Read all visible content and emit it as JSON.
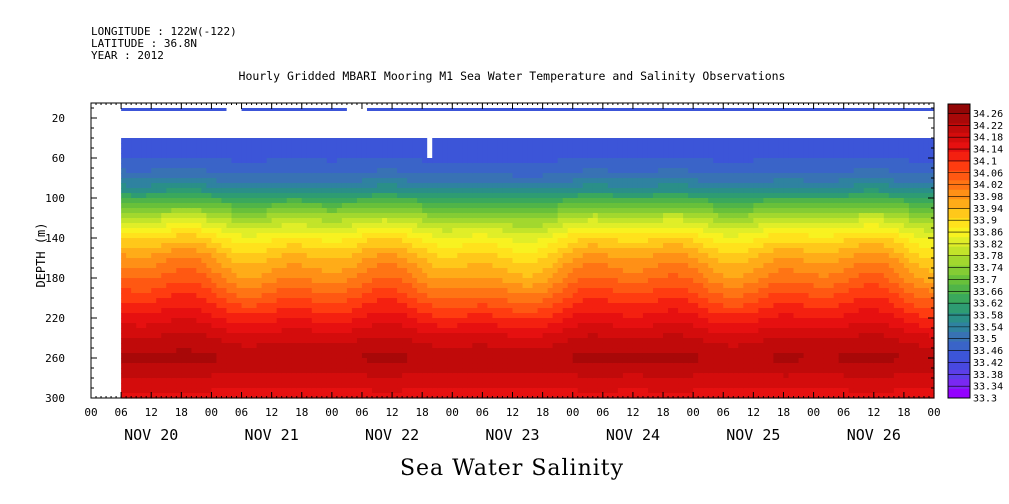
{
  "header": {
    "longitude": "LONGITUDE : 122W(-122)",
    "latitude": "LATITUDE : 36.8N",
    "year": "YEAR : 2012"
  },
  "chart_data": {
    "type": "heatmap",
    "title": "Hourly Gridded MBARI Mooring M1 Sea Water Temperature and Salinity Observations",
    "xlabel": "Sea Water Salinity",
    "ylabel": "DEPTH (m)",
    "x_start": "2012-11-20 00:00",
    "x_end": "2012-11-27 00:00",
    "data_start": "2012-11-20 06:00",
    "hour_tick_labels": [
      "00",
      "06",
      "12",
      "18"
    ],
    "day_labels": [
      "NOV 20",
      "NOV 21",
      "NOV 22",
      "NOV 23",
      "NOV 24",
      "NOV 25",
      "NOV 26"
    ],
    "y_ticks": [
      20,
      60,
      100,
      140,
      180,
      220,
      260,
      300
    ],
    "ylim": [
      300,
      5
    ],
    "top_layer_depths": [
      10,
      13
    ],
    "main_layer_top_depth": 40,
    "top_layer_gaps": [
      [
        "2012-11-21 03:00",
        "2012-11-21 06:00"
      ],
      [
        "2012-11-22 03:00",
        "2012-11-22 07:00"
      ]
    ],
    "main_layer_gaps": [
      [
        "2012-11-22 19:00",
        "2012-11-22 20:00"
      ]
    ],
    "main_layer_gap_depths": [
      40,
      60
    ],
    "colorbar": {
      "min": 33.3,
      "max": 34.26,
      "step": 0.04,
      "labels": [
        "34.26",
        "34.22",
        "34.18",
        "34.14",
        "34.1",
        "34.06",
        "34.02",
        "33.98",
        "33.94",
        "33.9",
        "33.86",
        "33.82",
        "33.78",
        "33.74",
        "33.7",
        "33.66",
        "33.62",
        "33.58",
        "33.54",
        "33.5",
        "33.46",
        "33.42",
        "33.38",
        "33.34",
        "33.3"
      ],
      "colors": [
        "#9400ff",
        "#7a28f2",
        "#5c3ee8",
        "#4848e0",
        "#3c55d8",
        "#3a64c8",
        "#3872b4",
        "#2f82a0",
        "#2a8f88",
        "#2e9c72",
        "#3aa85c",
        "#50b448",
        "#68c03a",
        "#84cc34",
        "#a2d82e",
        "#c2e42a",
        "#e0ee28",
        "#f8f220",
        "#ffe21c",
        "#ffc81a",
        "#ffac18",
        "#ff9016",
        "#ff7414",
        "#ff5812",
        "#ff3c10",
        "#f42010",
        "#e61010",
        "#d40c0c",
        "#c00a0a",
        "#a80808",
        "#920606"
      ]
    },
    "depth_profile": [
      [
        40,
        33.44
      ],
      [
        60,
        33.45
      ],
      [
        80,
        33.5
      ],
      [
        95,
        33.58
      ],
      [
        105,
        33.66
      ],
      [
        120,
        33.76
      ],
      [
        140,
        33.86
      ],
      [
        160,
        33.93
      ],
      [
        180,
        33.98
      ],
      [
        200,
        34.04
      ],
      [
        220,
        34.1
      ],
      [
        240,
        34.16
      ],
      [
        260,
        34.2
      ],
      [
        280,
        34.16
      ],
      [
        300,
        34.12
      ]
    ],
    "top_layer_value": 33.44
  }
}
